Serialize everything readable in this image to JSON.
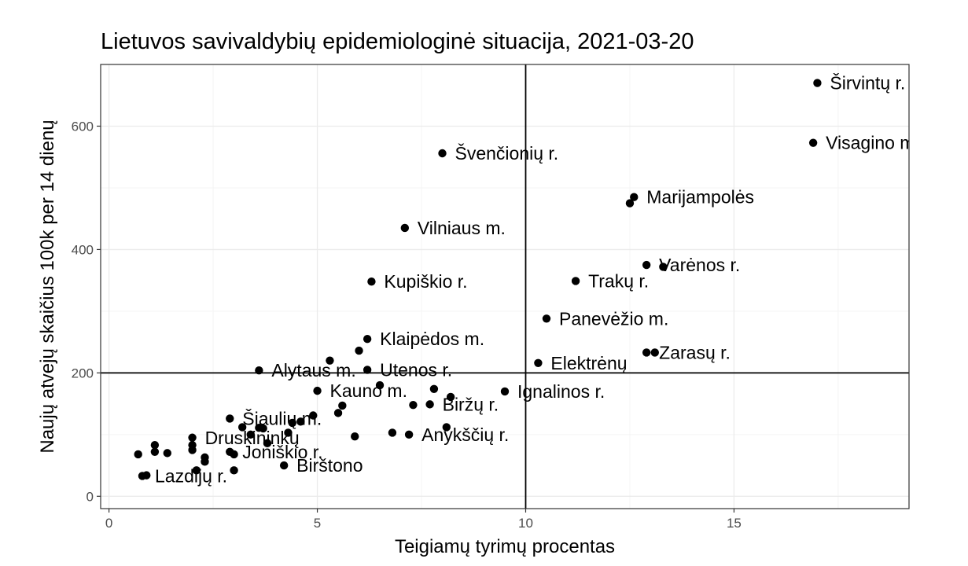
{
  "chart_data": {
    "type": "scatter",
    "title": "Lietuvos savivaldybių epidemiologinė situacija, 2021-03-20",
    "xlabel": "Teigiamų tyrimų procentas",
    "ylabel": "Naujų atvejų skaičius 100k per 14 dienų",
    "xlim": [
      -0.2,
      19.2
    ],
    "ylim": [
      -20,
      700
    ],
    "xticks": [
      0,
      5,
      10,
      15
    ],
    "yticks": [
      0,
      200,
      400,
      600
    ],
    "xtick_labels": [
      "0",
      "5",
      "10",
      "15"
    ],
    "ytick_labels": [
      "0",
      "200",
      "400",
      "600"
    ],
    "grid": true,
    "reference_lines": {
      "x": 10,
      "y": 200
    },
    "colors": {
      "point": "#000000",
      "panel_border": "#333333",
      "grid_major": "#ebebeb",
      "grid_minor": "#f4f4f4",
      "reference": "#000000"
    },
    "points": [
      {
        "x": 17.0,
        "y": 670,
        "label": "Širvintų r."
      },
      {
        "x": 16.9,
        "y": 573,
        "label": "Visagino m."
      },
      {
        "x": 8.0,
        "y": 556,
        "label": "Švenčionių r."
      },
      {
        "x": 12.6,
        "y": 485,
        "label": "Marijampolės"
      },
      {
        "x": 12.5,
        "y": 475,
        "label": ""
      },
      {
        "x": 7.1,
        "y": 435,
        "label": "Vilniaus m."
      },
      {
        "x": 12.9,
        "y": 375,
        "label": "Varėnos r."
      },
      {
        "x": 13.3,
        "y": 372,
        "label": ""
      },
      {
        "x": 6.3,
        "y": 348,
        "label": "Kupiškio r."
      },
      {
        "x": 11.2,
        "y": 349,
        "label": "Trakų r."
      },
      {
        "x": 10.5,
        "y": 288,
        "label": "Panevėžio m."
      },
      {
        "x": 6.2,
        "y": 255,
        "label": "Klaipėdos m."
      },
      {
        "x": 6.0,
        "y": 236,
        "label": ""
      },
      {
        "x": 12.9,
        "y": 233,
        "label": "Zarasų r."
      },
      {
        "x": 13.1,
        "y": 233,
        "label": ""
      },
      {
        "x": 5.3,
        "y": 220,
        "label": ""
      },
      {
        "x": 10.3,
        "y": 216,
        "label": "Elektrėnų"
      },
      {
        "x": 3.6,
        "y": 204,
        "label": "Alytaus m."
      },
      {
        "x": 6.2,
        "y": 205,
        "label": "Utenos r."
      },
      {
        "x": 6.5,
        "y": 180,
        "label": ""
      },
      {
        "x": 7.8,
        "y": 174,
        "label": ""
      },
      {
        "x": 9.5,
        "y": 170,
        "label": "Ignalinos r."
      },
      {
        "x": 5.0,
        "y": 171,
        "label": "Kauno m."
      },
      {
        "x": 8.2,
        "y": 161,
        "label": ""
      },
      {
        "x": 7.7,
        "y": 149,
        "label": "Biržų r."
      },
      {
        "x": 7.3,
        "y": 148,
        "label": ""
      },
      {
        "x": 5.6,
        "y": 147,
        "label": ""
      },
      {
        "x": 5.5,
        "y": 135,
        "label": ""
      },
      {
        "x": 4.9,
        "y": 131,
        "label": ""
      },
      {
        "x": 2.9,
        "y": 126,
        "label": "Šiaulių m."
      },
      {
        "x": 4.6,
        "y": 121,
        "label": ""
      },
      {
        "x": 4.4,
        "y": 119,
        "label": ""
      },
      {
        "x": 3.2,
        "y": 112,
        "label": ""
      },
      {
        "x": 3.6,
        "y": 111,
        "label": ""
      },
      {
        "x": 3.7,
        "y": 110,
        "label": ""
      },
      {
        "x": 8.1,
        "y": 112,
        "label": ""
      },
      {
        "x": 4.3,
        "y": 103,
        "label": ""
      },
      {
        "x": 6.8,
        "y": 103,
        "label": ""
      },
      {
        "x": 3.4,
        "y": 100,
        "label": ""
      },
      {
        "x": 7.2,
        "y": 100,
        "label": "Anykščių r."
      },
      {
        "x": 5.9,
        "y": 97,
        "label": ""
      },
      {
        "x": 2.0,
        "y": 95,
        "label": "Druskininkų"
      },
      {
        "x": 3.8,
        "y": 86,
        "label": ""
      },
      {
        "x": 1.1,
        "y": 83,
        "label": ""
      },
      {
        "x": 2.0,
        "y": 83,
        "label": ""
      },
      {
        "x": 2.0,
        "y": 75,
        "label": ""
      },
      {
        "x": 1.1,
        "y": 72,
        "label": ""
      },
      {
        "x": 2.9,
        "y": 72,
        "label": "Joniškio r."
      },
      {
        "x": 1.4,
        "y": 70,
        "label": ""
      },
      {
        "x": 0.7,
        "y": 68,
        "label": ""
      },
      {
        "x": 3.0,
        "y": 68,
        "label": ""
      },
      {
        "x": 2.3,
        "y": 63,
        "label": ""
      },
      {
        "x": 2.3,
        "y": 56,
        "label": ""
      },
      {
        "x": 4.2,
        "y": 50,
        "label": "Birštono"
      },
      {
        "x": 2.1,
        "y": 42,
        "label": ""
      },
      {
        "x": 3.0,
        "y": 42,
        "label": ""
      },
      {
        "x": 0.8,
        "y": 33,
        "label": "Lazdijų r."
      },
      {
        "x": 0.9,
        "y": 34,
        "label": ""
      }
    ]
  }
}
